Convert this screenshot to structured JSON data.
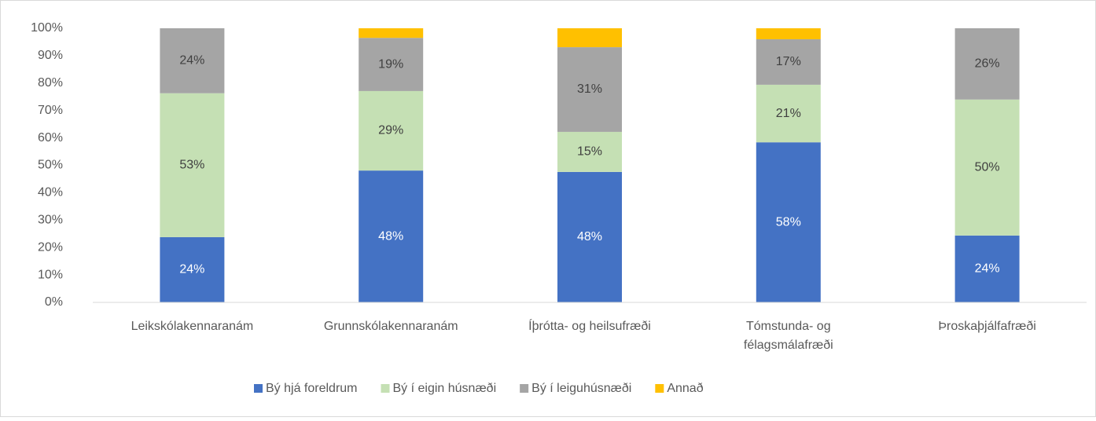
{
  "chart_data": {
    "type": "stacked_bar",
    "categories": [
      "Leikskólakennaranám",
      "Grunnskólakennaranám",
      "Íþrótta- og heilsufræði",
      "Tómstunda- og\nfélagsmálafræði",
      "Þroskaþjálfafræði"
    ],
    "series": [
      {
        "name": "Bý hjá foreldrum",
        "color": "#4472c4",
        "values": [
          23.8,
          48.1,
          47.6,
          58.4,
          24.4
        ],
        "value_labels": [
          "24%",
          "48%",
          "48%",
          "58%",
          "24%"
        ]
      },
      {
        "name": "Bý í eigin húsnæði",
        "color": "#c5e0b4",
        "values": [
          52.5,
          29.0,
          14.6,
          21.0,
          49.6
        ],
        "value_labels": [
          "53%",
          "29%",
          "15%",
          "21%",
          "50%"
        ]
      },
      {
        "name": "Bý í leiguhúsnæði",
        "color": "#a5a5a5",
        "values": [
          23.7,
          19.4,
          30.9,
          16.6,
          26.0
        ],
        "value_labels": [
          "24%",
          "19%",
          "31%",
          "17%",
          "26%"
        ]
      },
      {
        "name": "Annað",
        "color": "#ffc000",
        "values": [
          0,
          3.5,
          6.9,
          4.0,
          0
        ]
      }
    ],
    "ylim": [
      0,
      100
    ],
    "yticks": [
      {
        "value": 0,
        "label": "0%"
      },
      {
        "value": 10,
        "label": "10%"
      },
      {
        "value": 20,
        "label": "20%"
      },
      {
        "value": 30,
        "label": "30%"
      },
      {
        "value": 40,
        "label": "40%"
      },
      {
        "value": 50,
        "label": "50%"
      },
      {
        "value": 60,
        "label": "60%"
      },
      {
        "value": 70,
        "label": "70%"
      },
      {
        "value": 80,
        "label": "80%"
      },
      {
        "value": 90,
        "label": "90%"
      },
      {
        "value": 100,
        "label": "100%"
      }
    ],
    "grid": false,
    "legend": "bottom"
  }
}
